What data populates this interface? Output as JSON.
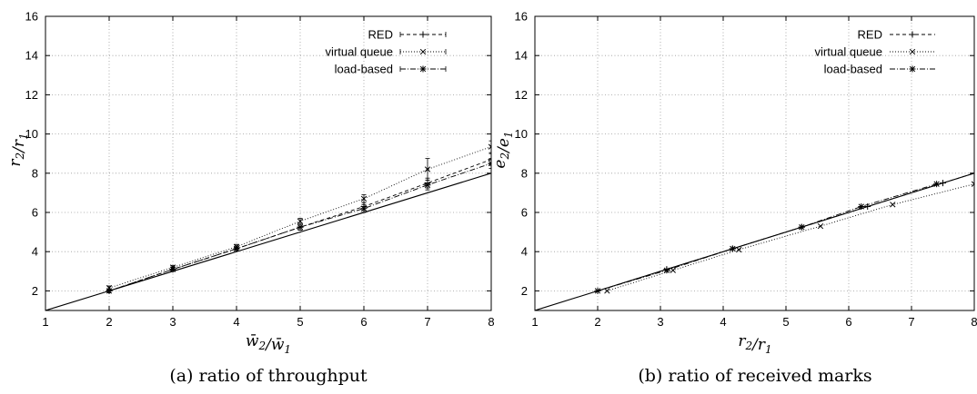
{
  "chart_data": [
    {
      "type": "line",
      "panel": "a",
      "caption": "(a) ratio of throughput",
      "xlabel": "w̄2/w̄1",
      "ylabel": "r2/r1",
      "xlim": [
        1,
        8
      ],
      "ylim": [
        1,
        16
      ],
      "xticks": [
        1,
        2,
        3,
        4,
        5,
        6,
        7,
        8
      ],
      "yticks": [
        2,
        4,
        6,
        8,
        10,
        12,
        14,
        16
      ],
      "grid": true,
      "legend_position": "top-right",
      "reference_line": [
        [
          1,
          1
        ],
        [
          8,
          8
        ]
      ],
      "series": [
        {
          "name": "RED",
          "marker": "+",
          "dash": "4 3",
          "x": [
            2,
            3,
            4,
            5,
            6,
            7,
            8
          ],
          "y": [
            2.0,
            3.1,
            4.15,
            5.25,
            6.3,
            7.5,
            8.7
          ],
          "err": [
            0.1,
            0.1,
            0.1,
            0.15,
            0.2,
            0.25,
            0.3
          ]
        },
        {
          "name": "virtual queue",
          "marker": "x",
          "dash": "1 2",
          "x": [
            2,
            3,
            4,
            5,
            6,
            7,
            8
          ],
          "y": [
            2.15,
            3.2,
            4.25,
            5.55,
            6.7,
            8.2,
            9.35
          ],
          "err": [
            0.1,
            0.1,
            0.12,
            0.15,
            0.2,
            0.55,
            0.3
          ]
        },
        {
          "name": "load-based",
          "marker": "*",
          "dash": "6 2 1 2",
          "x": [
            2,
            3,
            4,
            5,
            6,
            7,
            8
          ],
          "y": [
            2.0,
            3.1,
            4.15,
            5.25,
            6.2,
            7.4,
            8.5
          ],
          "err": [
            0.1,
            0.1,
            0.1,
            0.15,
            0.2,
            0.25,
            0.25
          ]
        }
      ]
    },
    {
      "type": "line",
      "panel": "b",
      "caption": "(b) ratio of received marks",
      "xlabel": "r2/r1",
      "ylabel": "e2/e1",
      "xlim": [
        1,
        8
      ],
      "ylim": [
        1,
        16
      ],
      "xticks": [
        1,
        2,
        3,
        4,
        5,
        6,
        7,
        8
      ],
      "yticks": [
        2,
        4,
        6,
        8,
        10,
        12,
        14,
        16
      ],
      "grid": true,
      "legend_position": "top-right",
      "reference_line": [
        [
          1,
          1
        ],
        [
          8,
          8
        ]
      ],
      "series": [
        {
          "name": "RED",
          "marker": "+",
          "dash": "4 3",
          "x": [
            2.0,
            3.1,
            4.15,
            5.25,
            6.3,
            7.5,
            8.0
          ],
          "y": [
            2.0,
            3.1,
            4.15,
            5.25,
            6.3,
            7.5,
            8.0
          ]
        },
        {
          "name": "virtual queue",
          "marker": "x",
          "dash": "1 2",
          "x": [
            2.15,
            3.2,
            4.25,
            5.55,
            6.7,
            8.0
          ],
          "y": [
            2.0,
            3.05,
            4.1,
            5.3,
            6.4,
            7.45
          ]
        },
        {
          "name": "load-based",
          "marker": "*",
          "dash": "6 2 1 2",
          "x": [
            2.0,
            3.1,
            4.15,
            5.25,
            6.2,
            7.4
          ],
          "y": [
            2.0,
            3.05,
            4.15,
            5.25,
            6.3,
            7.45
          ]
        }
      ]
    }
  ]
}
